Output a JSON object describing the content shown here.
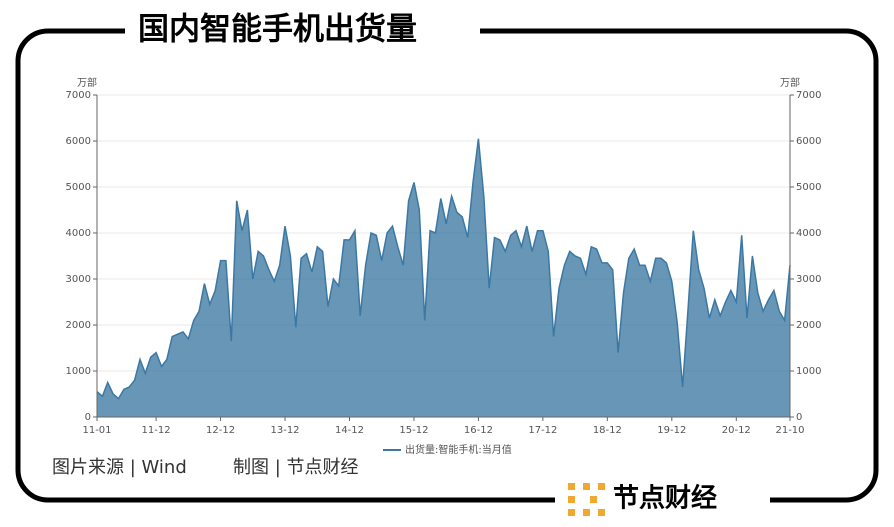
{
  "header": {
    "title": "国内智能手机出货量"
  },
  "chart_data": {
    "type": "area",
    "y_unit": "万部",
    "y2_unit": "万部",
    "categories": [
      "11-01",
      null,
      null,
      null,
      null,
      null,
      null,
      null,
      null,
      null,
      null,
      "11-12",
      null,
      null,
      null,
      null,
      null,
      null,
      null,
      null,
      null,
      null,
      null,
      "12-12",
      null,
      null,
      null,
      null,
      null,
      null,
      null,
      null,
      null,
      null,
      null,
      "13-12",
      null,
      null,
      null,
      null,
      null,
      null,
      null,
      null,
      null,
      null,
      null,
      "14-12",
      null,
      null,
      null,
      null,
      null,
      null,
      null,
      null,
      null,
      null,
      null,
      "15-12",
      null,
      null,
      null,
      null,
      null,
      null,
      null,
      null,
      null,
      null,
      null,
      "16-12",
      null,
      null,
      null,
      null,
      null,
      null,
      null,
      null,
      null,
      null,
      null,
      "17-12",
      null,
      null,
      null,
      null,
      null,
      null,
      null,
      null,
      null,
      null,
      null,
      "18-12",
      null,
      null,
      null,
      null,
      null,
      null,
      null,
      null,
      null,
      null,
      null,
      "19-12",
      null,
      null,
      null,
      null,
      null,
      null,
      null,
      null,
      null,
      null,
      null,
      "20-12",
      null,
      null,
      null,
      null,
      null,
      null,
      null,
      null,
      null,
      "21-10"
    ],
    "series": [
      {
        "name": "出货量:智能手机:当月值",
        "color": "#3c78a3",
        "values": [
          550,
          450,
          750,
          500,
          400,
          600,
          650,
          800,
          1250,
          950,
          1300,
          1400,
          1100,
          1250,
          1750,
          1800,
          1850,
          1700,
          2100,
          2300,
          2900,
          2450,
          2750,
          3400,
          3400,
          1650,
          4700,
          4050,
          4500,
          3000,
          3600,
          3500,
          3200,
          2950,
          3300,
          4150,
          3500,
          1950,
          3450,
          3550,
          3150,
          3700,
          3600,
          2400,
          3000,
          2850,
          3850,
          3850,
          4050,
          2200,
          3300,
          4000,
          3950,
          3400,
          4000,
          4150,
          3700,
          3300,
          4700,
          5100,
          4500,
          2100,
          4050,
          4000,
          4750,
          4200,
          4800,
          4450,
          4350,
          3900,
          5100,
          6050,
          4800,
          2800,
          3900,
          3850,
          3600,
          3950,
          4050,
          3700,
          4150,
          3600,
          4050,
          4050,
          3600,
          1750,
          2800,
          3300,
          3600,
          3500,
          3450,
          3100,
          3700,
          3650,
          3350,
          3350,
          3200,
          1400,
          2700,
          3450,
          3650,
          3300,
          3300,
          2950,
          3450,
          3450,
          3350,
          2950,
          2050,
          650,
          2300,
          4050,
          3200,
          2800,
          2150,
          2550,
          2200,
          2500,
          2750,
          2500,
          3950,
          2150,
          3500,
          2700,
          2300,
          2550,
          2750,
          2300,
          2100,
          3300
        ]
      }
    ],
    "ylim": [
      0,
      7000
    ],
    "yticks": [
      0,
      1000,
      2000,
      3000,
      4000,
      5000,
      6000,
      7000
    ],
    "y2lim": [
      0,
      7000
    ],
    "y2ticks": [
      0,
      1000,
      2000,
      3000,
      4000,
      5000,
      6000,
      7000
    ],
    "grid": true,
    "legend": "bottom"
  },
  "footer": {
    "source": "图片来源 | Wind",
    "maker": "制图 | 节点财经"
  },
  "logo": {
    "text": "节点财经"
  }
}
